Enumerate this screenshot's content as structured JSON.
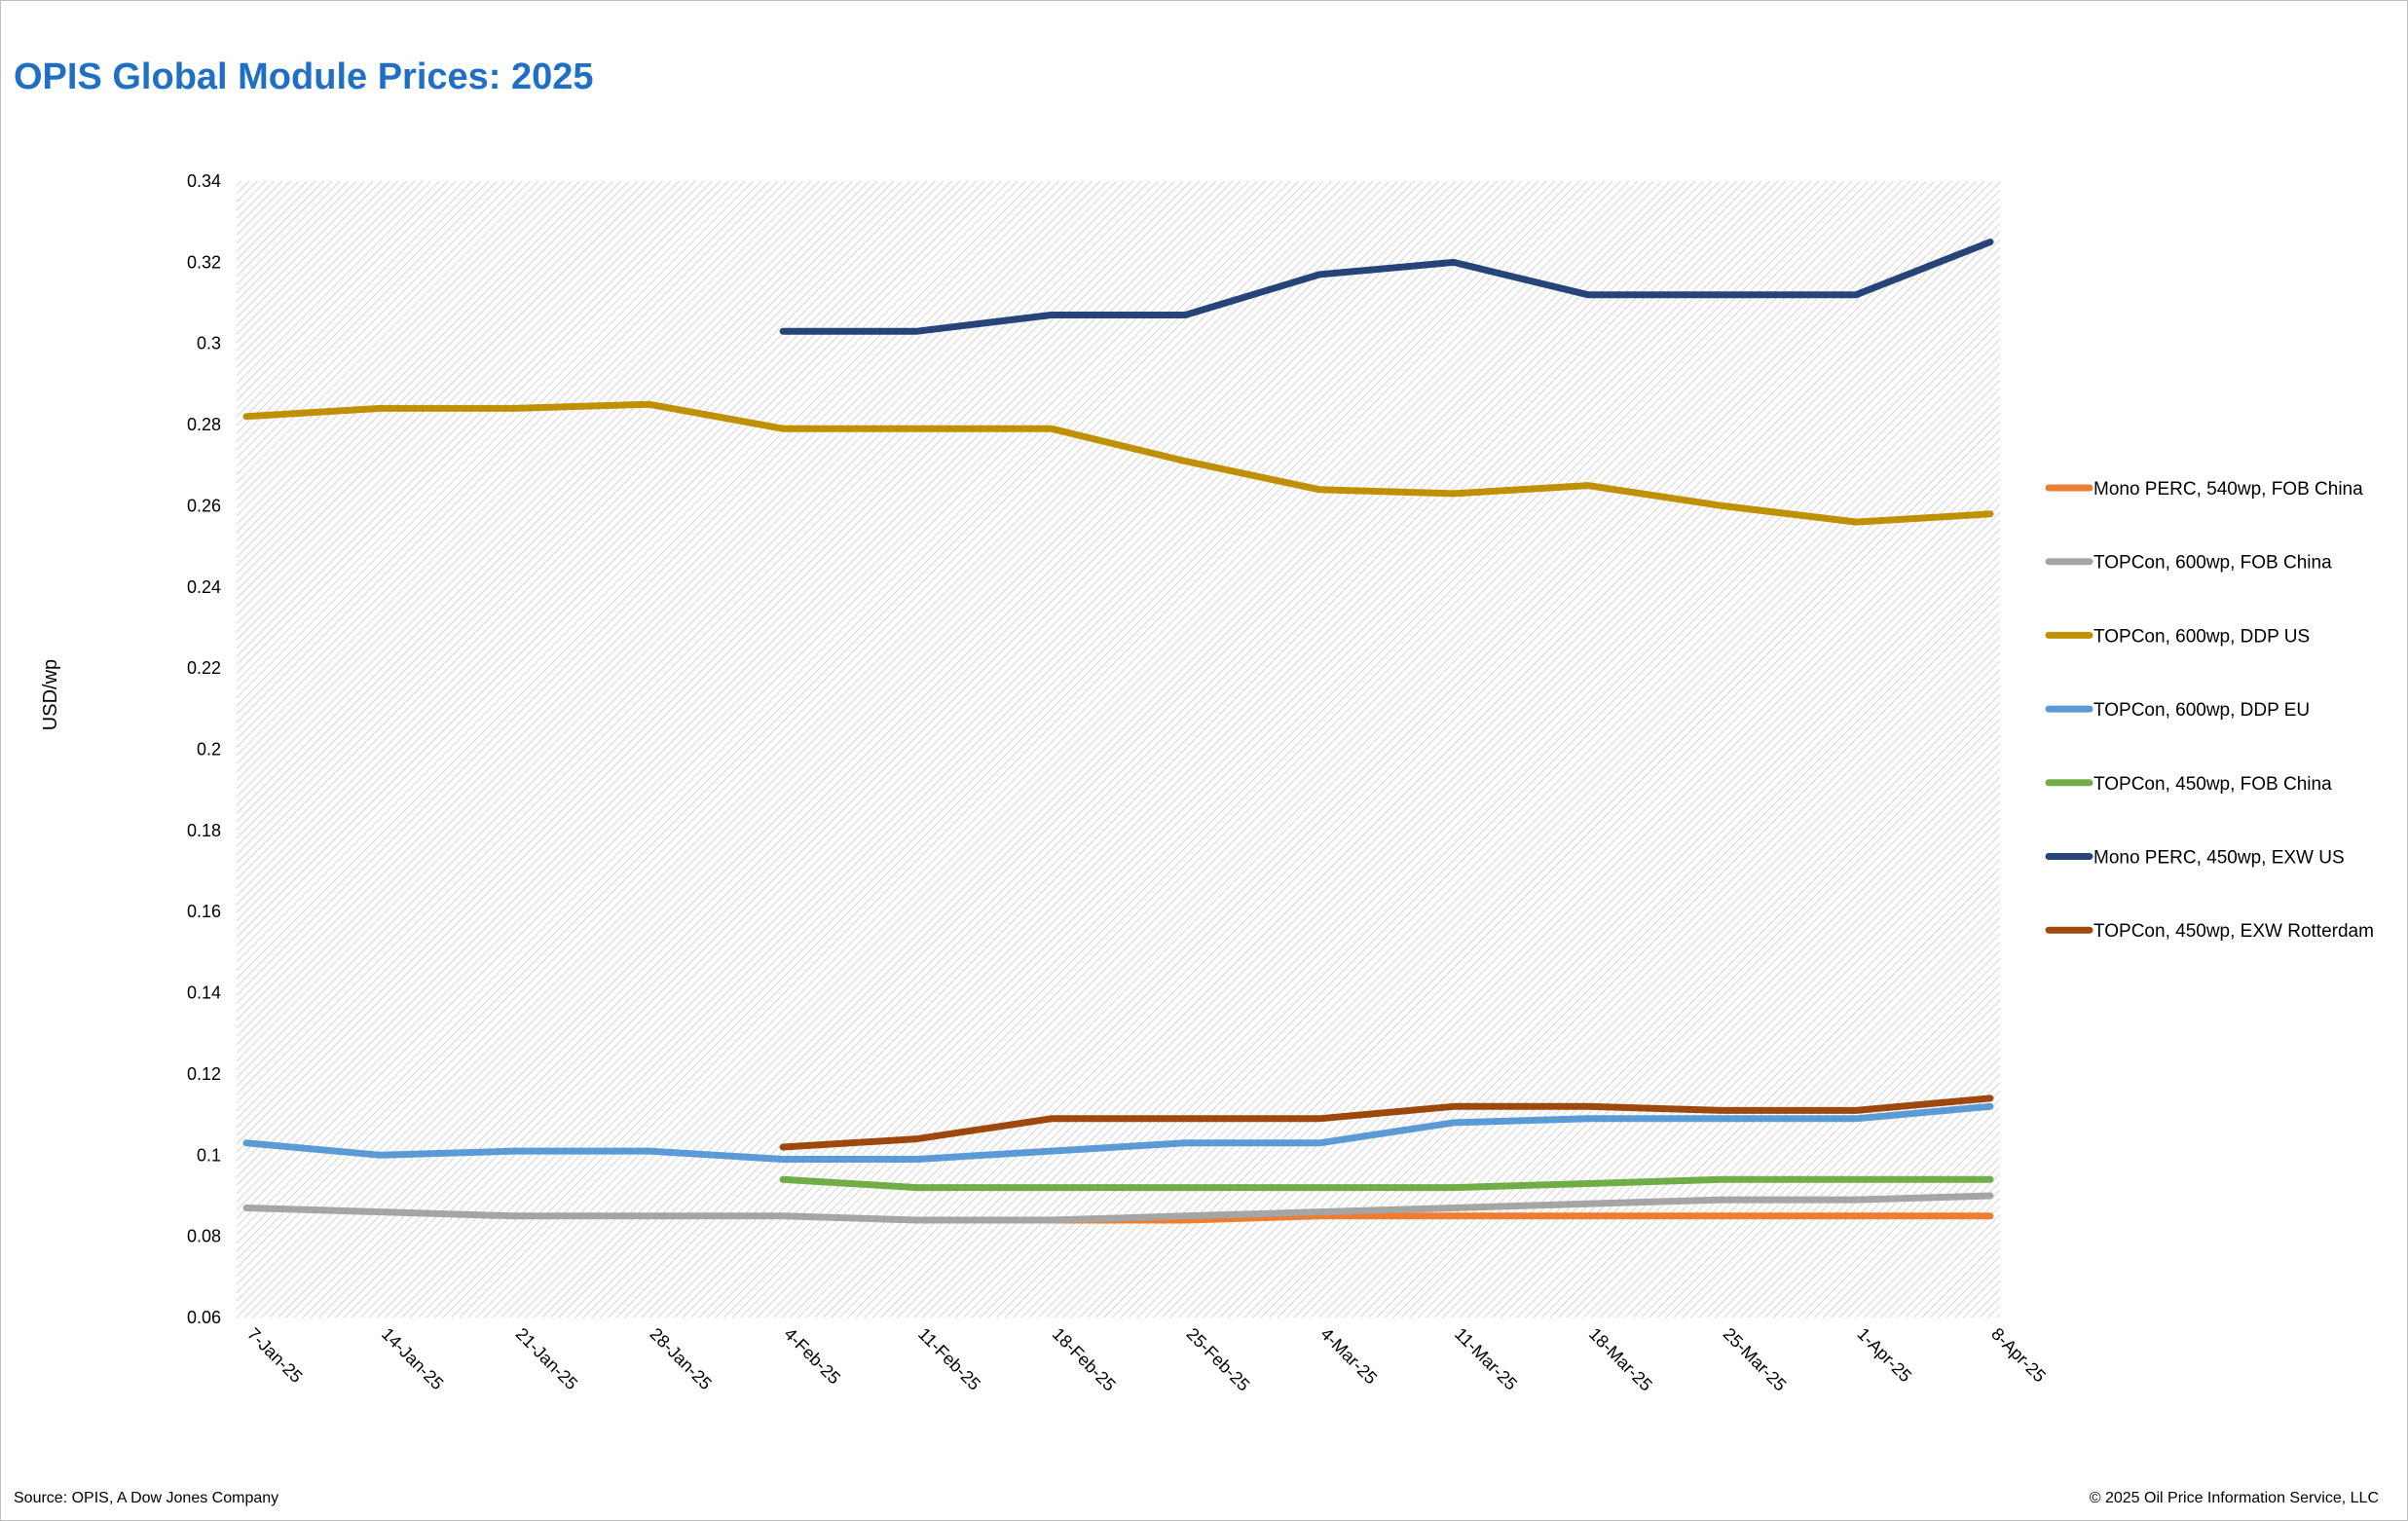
{
  "header": {
    "title": "OPIS Global Module Prices: 2025"
  },
  "footer": {
    "source": "Source: OPIS, A Dow Jones Company",
    "copyright": "© 2025 Oil Price Information Service, LLC"
  },
  "chart_data": {
    "type": "line",
    "title": "OPIS Global Module Prices: 2025",
    "xlabel": "",
    "ylabel": "USD/wp",
    "ylim": [
      0.06,
      0.34
    ],
    "ytick_step": 0.02,
    "yticks": [
      "0.06",
      "0.08",
      "0.1",
      "0.12",
      "0.14",
      "0.16",
      "0.18",
      "0.2",
      "0.22",
      "0.24",
      "0.26",
      "0.28",
      "0.3",
      "0.32",
      "0.34"
    ],
    "grid": "hatched background",
    "legend": "right",
    "categories": [
      "7-Jan-25",
      "14-Jan-25",
      "21-Jan-25",
      "28-Jan-25",
      "4-Feb-25",
      "11-Feb-25",
      "18-Feb-25",
      "25-Feb-25",
      "4-Mar-25",
      "11-Mar-25",
      "18-Mar-25",
      "25-Mar-25",
      "1-Apr-25",
      "8-Apr-25"
    ],
    "series": [
      {
        "name": "Mono PERC, 540wp, FOB China",
        "color": "#ed7d31",
        "values": [
          null,
          null,
          null,
          null,
          null,
          null,
          0.084,
          0.084,
          0.085,
          0.085,
          0.085,
          0.085,
          0.085,
          0.085
        ]
      },
      {
        "name": "TOPCon, 600wp, FOB China",
        "color": "#a5a5a5",
        "values": [
          0.087,
          0.086,
          0.085,
          0.085,
          0.085,
          0.084,
          0.084,
          0.085,
          0.086,
          0.087,
          0.088,
          0.089,
          0.089,
          0.09
        ]
      },
      {
        "name": "TOPCon, 600wp, DDP US",
        "color": "#bf9000",
        "values": [
          0.282,
          0.284,
          0.284,
          0.285,
          0.279,
          0.279,
          0.279,
          0.271,
          0.264,
          0.263,
          0.265,
          0.26,
          0.256,
          0.258
        ]
      },
      {
        "name": "TOPCon, 600wp, DDP EU",
        "color": "#5b9bd5",
        "values": [
          0.103,
          0.1,
          0.101,
          0.101,
          0.099,
          0.099,
          0.101,
          0.103,
          0.103,
          0.108,
          0.109,
          0.109,
          0.109,
          0.112
        ]
      },
      {
        "name": "TOPCon, 450wp, FOB China",
        "color": "#70ad47",
        "values": [
          null,
          null,
          null,
          null,
          0.094,
          0.092,
          0.092,
          0.092,
          0.092,
          0.092,
          0.093,
          0.094,
          0.094,
          0.094
        ]
      },
      {
        "name": "Mono PERC, 450wp, EXW US",
        "color": "#264478",
        "values": [
          null,
          null,
          null,
          null,
          0.303,
          0.303,
          0.307,
          0.307,
          0.317,
          0.32,
          0.312,
          0.312,
          0.312,
          0.325
        ]
      },
      {
        "name": "TOPCon, 450wp, EXW Rotterdam",
        "color": "#9e480e",
        "values": [
          null,
          null,
          null,
          null,
          0.102,
          0.104,
          0.109,
          0.109,
          0.109,
          0.112,
          0.112,
          0.111,
          0.111,
          0.114
        ]
      }
    ]
  }
}
